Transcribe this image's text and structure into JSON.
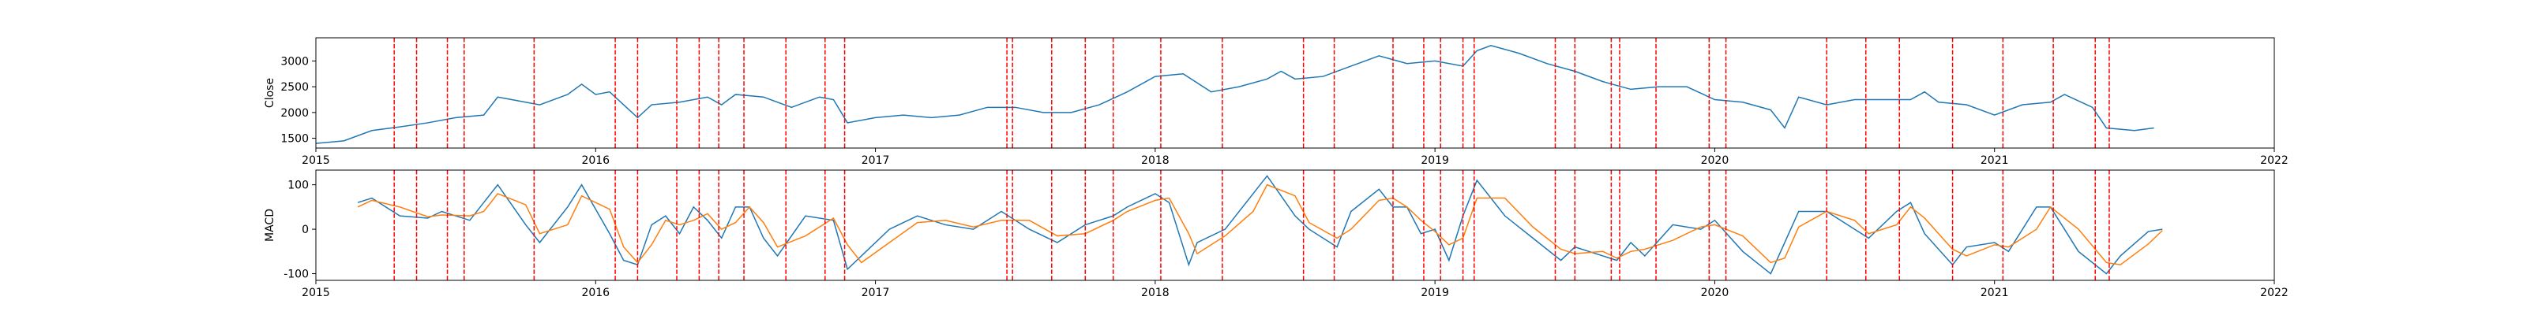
{
  "chart_data": [
    {
      "type": "line",
      "ylabel": "Close",
      "xlim": [
        2015,
        2022
      ],
      "xticks": [
        2015,
        2016,
        2017,
        2018,
        2019,
        2020,
        2021,
        2022
      ],
      "ylim": [
        1310,
        3450
      ],
      "yticks": [
        1500,
        2000,
        2500,
        3000
      ],
      "vline_color": "#ff0000",
      "vlines": [
        2015.28,
        2015.36,
        2015.47,
        2015.53,
        2015.78,
        2016.07,
        2016.15,
        2016.29,
        2016.37,
        2016.44,
        2016.53,
        2016.68,
        2016.82,
        2016.89,
        2017.47,
        2017.49,
        2017.63,
        2017.75,
        2017.85,
        2018.02,
        2018.24,
        2018.53,
        2018.64,
        2018.85,
        2018.96,
        2019.02,
        2019.1,
        2019.14,
        2019.43,
        2019.5,
        2019.63,
        2019.66,
        2019.79,
        2019.98,
        2020.04,
        2020.4,
        2020.54,
        2020.66,
        2020.85,
        2021.03,
        2021.21,
        2021.36,
        2021.41
      ],
      "series": [
        {
          "color": "#1f77b4",
          "x": [
            2015.0,
            2015.1,
            2015.2,
            2015.3,
            2015.4,
            2015.5,
            2015.6,
            2015.65,
            2015.7,
            2015.8,
            2015.9,
            2015.95,
            2016.0,
            2016.05,
            2016.1,
            2016.15,
            2016.2,
            2016.3,
            2016.4,
            2016.45,
            2016.5,
            2016.6,
            2016.7,
            2016.8,
            2016.85,
            2016.9,
            2017.0,
            2017.1,
            2017.2,
            2017.3,
            2017.4,
            2017.5,
            2017.6,
            2017.7,
            2017.8,
            2017.9,
            2018.0,
            2018.1,
            2018.2,
            2018.3,
            2018.4,
            2018.45,
            2018.5,
            2018.6,
            2018.7,
            2018.8,
            2018.9,
            2019.0,
            2019.1,
            2019.15,
            2019.2,
            2019.3,
            2019.4,
            2019.5,
            2019.6,
            2019.7,
            2019.8,
            2019.9,
            2020.0,
            2020.1,
            2020.2,
            2020.25,
            2020.3,
            2020.4,
            2020.5,
            2020.6,
            2020.7,
            2020.75,
            2020.8,
            2020.9,
            2021.0,
            2021.1,
            2021.2,
            2021.25,
            2021.35,
            2021.4,
            2021.5,
            2021.57
          ],
          "values": [
            1400,
            1450,
            1650,
            1720,
            1800,
            1900,
            1950,
            2300,
            2250,
            2150,
            2350,
            2550,
            2350,
            2400,
            2150,
            1900,
            2150,
            2200,
            2300,
            2150,
            2350,
            2300,
            2100,
            2300,
            2250,
            1800,
            1900,
            1950,
            1900,
            1950,
            2100,
            2100,
            2000,
            2000,
            2150,
            2400,
            2700,
            2750,
            2400,
            2500,
            2650,
            2800,
            2650,
            2700,
            2900,
            3100,
            2950,
            3000,
            2900,
            3200,
            3300,
            3150,
            2950,
            2800,
            2600,
            2450,
            2500,
            2500,
            2250,
            2200,
            2050,
            1700,
            2300,
            2150,
            2250,
            2250,
            2250,
            2400,
            2200,
            2150,
            1950,
            2150,
            2200,
            2350,
            2100,
            1700,
            1650,
            1700
          ]
        }
      ]
    },
    {
      "type": "line",
      "ylabel": "MACD",
      "xlim": [
        2015,
        2022
      ],
      "xticks": [
        2015,
        2016,
        2017,
        2018,
        2019,
        2020,
        2021,
        2022
      ],
      "ylim": [
        -115,
        133
      ],
      "yticks": [
        -100,
        0,
        100
      ],
      "vline_color": "#ff0000",
      "vlines": [
        2015.28,
        2015.36,
        2015.47,
        2015.53,
        2015.78,
        2016.07,
        2016.15,
        2016.29,
        2016.37,
        2016.44,
        2016.53,
        2016.68,
        2016.82,
        2016.89,
        2017.47,
        2017.49,
        2017.63,
        2017.75,
        2017.85,
        2018.02,
        2018.24,
        2018.53,
        2018.64,
        2018.85,
        2018.96,
        2019.02,
        2019.1,
        2019.14,
        2019.43,
        2019.5,
        2019.63,
        2019.66,
        2019.79,
        2019.98,
        2020.04,
        2020.4,
        2020.54,
        2020.66,
        2020.85,
        2021.03,
        2021.21,
        2021.36,
        2021.41
      ],
      "series": [
        {
          "color": "#1f77b4",
          "x": [
            2015.15,
            2015.2,
            2015.3,
            2015.4,
            2015.45,
            2015.55,
            2015.6,
            2015.65,
            2015.75,
            2015.8,
            2015.9,
            2015.95,
            2016.05,
            2016.1,
            2016.15,
            2016.2,
            2016.25,
            2016.3,
            2016.35,
            2016.4,
            2016.45,
            2016.5,
            2016.55,
            2016.6,
            2016.65,
            2016.75,
            2016.85,
            2016.9,
            2016.95,
            2017.05,
            2017.15,
            2017.25,
            2017.35,
            2017.45,
            2017.55,
            2017.65,
            2017.75,
            2017.85,
            2017.9,
            2018.0,
            2018.05,
            2018.12,
            2018.15,
            2018.25,
            2018.35,
            2018.4,
            2018.5,
            2018.55,
            2018.65,
            2018.7,
            2018.8,
            2018.85,
            2018.9,
            2018.95,
            2019.0,
            2019.05,
            2019.1,
            2019.15,
            2019.25,
            2019.35,
            2019.45,
            2019.5,
            2019.6,
            2019.65,
            2019.7,
            2019.75,
            2019.85,
            2019.95,
            2020.0,
            2020.1,
            2020.2,
            2020.25,
            2020.3,
            2020.4,
            2020.5,
            2020.55,
            2020.65,
            2020.7,
            2020.75,
            2020.85,
            2020.9,
            2021.0,
            2021.05,
            2021.15,
            2021.2,
            2021.3,
            2021.4,
            2021.45,
            2021.55,
            2021.6
          ],
          "values": [
            60,
            70,
            30,
            25,
            40,
            20,
            60,
            100,
            10,
            -30,
            50,
            100,
            -10,
            -70,
            -80,
            10,
            30,
            -10,
            50,
            20,
            -20,
            50,
            50,
            -20,
            -60,
            30,
            20,
            -90,
            -60,
            0,
            30,
            10,
            0,
            40,
            0,
            -30,
            10,
            30,
            50,
            80,
            60,
            -80,
            -30,
            0,
            80,
            120,
            30,
            0,
            -40,
            40,
            90,
            50,
            50,
            -10,
            0,
            -70,
            30,
            110,
            30,
            -20,
            -70,
            -40,
            -60,
            -70,
            -30,
            -60,
            10,
            0,
            20,
            -50,
            -100,
            -30,
            40,
            40,
            0,
            -20,
            40,
            60,
            -10,
            -80,
            -40,
            -30,
            -50,
            50,
            50,
            -50,
            -100,
            -60,
            -5,
            0
          ]
        },
        {
          "color": "#ff7f0e",
          "x": [
            2015.15,
            2015.2,
            2015.3,
            2015.4,
            2015.45,
            2015.55,
            2015.6,
            2015.65,
            2015.75,
            2015.8,
            2015.9,
            2015.95,
            2016.05,
            2016.1,
            2016.15,
            2016.2,
            2016.25,
            2016.3,
            2016.35,
            2016.4,
            2016.45,
            2016.5,
            2016.55,
            2016.6,
            2016.65,
            2016.75,
            2016.85,
            2016.9,
            2016.95,
            2017.05,
            2017.15,
            2017.25,
            2017.35,
            2017.45,
            2017.55,
            2017.65,
            2017.75,
            2017.85,
            2017.9,
            2018.0,
            2018.05,
            2018.12,
            2018.15,
            2018.25,
            2018.35,
            2018.4,
            2018.5,
            2018.55,
            2018.65,
            2018.7,
            2018.8,
            2018.85,
            2018.9,
            2018.95,
            2019.0,
            2019.05,
            2019.1,
            2019.15,
            2019.25,
            2019.35,
            2019.45,
            2019.5,
            2019.6,
            2019.65,
            2019.7,
            2019.75,
            2019.85,
            2019.95,
            2020.0,
            2020.1,
            2020.2,
            2020.25,
            2020.3,
            2020.4,
            2020.5,
            2020.55,
            2020.65,
            2020.7,
            2020.75,
            2020.85,
            2020.9,
            2021.0,
            2021.05,
            2021.15,
            2021.2,
            2021.3,
            2021.4,
            2021.45,
            2021.55,
            2021.6
          ],
          "values": [
            50,
            65,
            50,
            28,
            32,
            30,
            40,
            80,
            55,
            -10,
            10,
            75,
            45,
            -40,
            -75,
            -35,
            20,
            10,
            20,
            35,
            0,
            15,
            50,
            15,
            -40,
            -15,
            25,
            -35,
            -75,
            -30,
            15,
            20,
            5,
            20,
            20,
            -15,
            -10,
            20,
            40,
            65,
            70,
            -10,
            -55,
            -15,
            40,
            100,
            75,
            15,
            -20,
            0,
            65,
            70,
            50,
            20,
            -5,
            -35,
            -20,
            70,
            70,
            5,
            -45,
            -55,
            -50,
            -65,
            -50,
            -45,
            -25,
            5,
            10,
            -15,
            -75,
            -65,
            5,
            40,
            20,
            -10,
            10,
            50,
            25,
            -45,
            -60,
            -35,
            -40,
            0,
            50,
            0,
            -75,
            -80,
            -33,
            -3
          ]
        }
      ]
    }
  ]
}
